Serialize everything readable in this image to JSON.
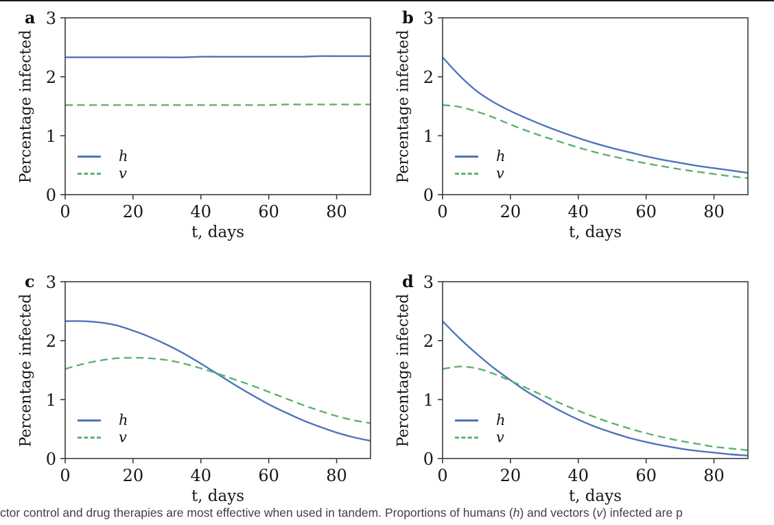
{
  "page": {
    "background": "#ffffff",
    "top_rule_color": "#1b1b1b",
    "spine_color": "#3b3b3b",
    "text_color": "#161616"
  },
  "caption": {
    "part1": "ctor control and drug therapies are most effective when used in tandem. Proportions of humans (",
    "h_symbol": "h",
    "part2": ") and vectors (",
    "v_symbol": "v",
    "part3": ") infected are p"
  },
  "chart_data": [
    {
      "type": "line",
      "panel_label": "a",
      "xlabel": "t, days",
      "ylabel": "Percentage infected",
      "xlim": [
        0,
        90
      ],
      "ylim": [
        0,
        3
      ],
      "xticks": [
        0,
        20,
        40,
        60,
        80
      ],
      "yticks": [
        0,
        1,
        2,
        3
      ],
      "grid": false,
      "legend_position": "lower left",
      "x": [
        0,
        5,
        10,
        15,
        20,
        25,
        30,
        35,
        40,
        45,
        50,
        55,
        60,
        65,
        70,
        75,
        80,
        85,
        90
      ],
      "series": [
        {
          "name": "h",
          "style": "solid",
          "color": "#4d74ba",
          "values": [
            2.33,
            2.33,
            2.33,
            2.33,
            2.33,
            2.33,
            2.33,
            2.33,
            2.34,
            2.34,
            2.34,
            2.34,
            2.34,
            2.34,
            2.34,
            2.35,
            2.35,
            2.35,
            2.35
          ]
        },
        {
          "name": "v",
          "style": "dashed",
          "color": "#5cb26e",
          "values": [
            1.52,
            1.52,
            1.52,
            1.52,
            1.52,
            1.52,
            1.52,
            1.52,
            1.52,
            1.52,
            1.52,
            1.52,
            1.52,
            1.53,
            1.53,
            1.53,
            1.53,
            1.53,
            1.53
          ]
        }
      ]
    },
    {
      "type": "line",
      "panel_label": "b",
      "xlabel": "t, days",
      "ylabel": "Percentage infected",
      "xlim": [
        0,
        90
      ],
      "ylim": [
        0,
        3
      ],
      "xticks": [
        0,
        20,
        40,
        60,
        80
      ],
      "yticks": [
        0,
        1,
        2,
        3
      ],
      "grid": false,
      "legend_position": "lower left",
      "x": [
        0,
        5,
        10,
        15,
        20,
        25,
        30,
        35,
        40,
        45,
        50,
        55,
        60,
        65,
        70,
        75,
        80,
        85,
        90
      ],
      "series": [
        {
          "name": "h",
          "style": "solid",
          "color": "#4d74ba",
          "values": [
            2.33,
            2.02,
            1.76,
            1.57,
            1.42,
            1.29,
            1.17,
            1.06,
            0.96,
            0.87,
            0.79,
            0.72,
            0.65,
            0.59,
            0.54,
            0.49,
            0.45,
            0.41,
            0.37
          ]
        },
        {
          "name": "v",
          "style": "dashed",
          "color": "#5cb26e",
          "values": [
            1.52,
            1.49,
            1.41,
            1.31,
            1.19,
            1.08,
            0.98,
            0.89,
            0.8,
            0.72,
            0.65,
            0.59,
            0.53,
            0.48,
            0.43,
            0.39,
            0.35,
            0.31,
            0.28
          ]
        }
      ]
    },
    {
      "type": "line",
      "panel_label": "c",
      "xlabel": "t, days",
      "ylabel": "Percentage infected",
      "xlim": [
        0,
        90
      ],
      "ylim": [
        0,
        3
      ],
      "xticks": [
        0,
        20,
        40,
        60,
        80
      ],
      "yticks": [
        0,
        1,
        2,
        3
      ],
      "grid": false,
      "legend_position": "lower left",
      "x": [
        0,
        5,
        10,
        15,
        20,
        25,
        30,
        35,
        40,
        45,
        50,
        55,
        60,
        65,
        70,
        75,
        80,
        85,
        90
      ],
      "series": [
        {
          "name": "h",
          "style": "solid",
          "color": "#4d74ba",
          "values": [
            2.33,
            2.33,
            2.31,
            2.26,
            2.17,
            2.06,
            1.93,
            1.78,
            1.61,
            1.43,
            1.25,
            1.08,
            0.92,
            0.78,
            0.65,
            0.54,
            0.44,
            0.36,
            0.3
          ]
        },
        {
          "name": "v",
          "style": "dashed",
          "color": "#5cb26e",
          "values": [
            1.52,
            1.6,
            1.66,
            1.7,
            1.71,
            1.7,
            1.67,
            1.61,
            1.53,
            1.44,
            1.34,
            1.24,
            1.13,
            1.02,
            0.91,
            0.81,
            0.72,
            0.65,
            0.6
          ]
        }
      ]
    },
    {
      "type": "line",
      "panel_label": "d",
      "xlabel": "t, days",
      "ylabel": "Percentage infected",
      "xlim": [
        0,
        90
      ],
      "ylim": [
        0,
        3
      ],
      "xticks": [
        0,
        20,
        40,
        60,
        80
      ],
      "yticks": [
        0,
        1,
        2,
        3
      ],
      "grid": false,
      "legend_position": "lower left",
      "x": [
        0,
        5,
        10,
        15,
        20,
        25,
        30,
        35,
        40,
        45,
        50,
        55,
        60,
        65,
        70,
        75,
        80,
        85,
        90
      ],
      "series": [
        {
          "name": "h",
          "style": "solid",
          "color": "#4d74ba",
          "values": [
            2.33,
            2.04,
            1.78,
            1.54,
            1.33,
            1.13,
            0.96,
            0.8,
            0.66,
            0.54,
            0.44,
            0.35,
            0.28,
            0.22,
            0.17,
            0.13,
            0.1,
            0.07,
            0.05
          ]
        },
        {
          "name": "v",
          "style": "dashed",
          "color": "#5cb26e",
          "values": [
            1.52,
            1.56,
            1.53,
            1.44,
            1.32,
            1.19,
            1.06,
            0.93,
            0.81,
            0.7,
            0.6,
            0.51,
            0.43,
            0.36,
            0.3,
            0.25,
            0.2,
            0.17,
            0.14
          ]
        }
      ]
    }
  ]
}
